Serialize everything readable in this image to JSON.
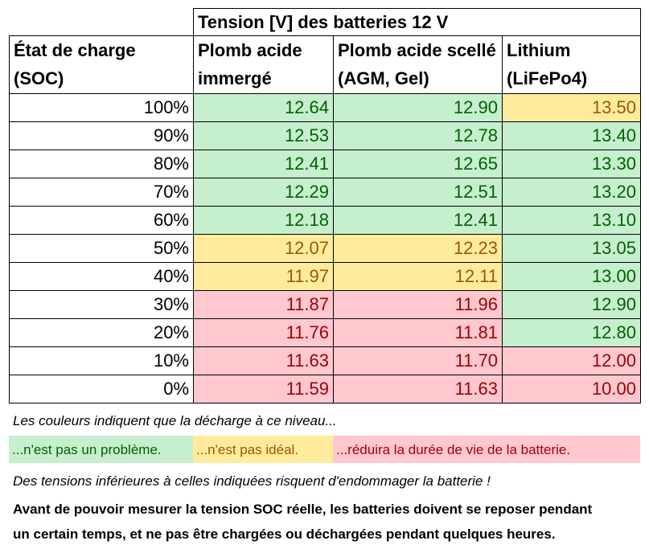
{
  "table": {
    "title": "Tension [V] des batteries 12 V",
    "headers": {
      "soc_line1": "État de charge",
      "soc_line2": "(SOC)",
      "lead_immersed_line1": "Plomb acide",
      "lead_immersed_line2": "immergé",
      "lead_sealed_line1": "Plomb acide scellé",
      "lead_sealed_line2": "(AGM, Gel)",
      "lithium_line1": "Lithium",
      "lithium_line2": "(LiFePo4)"
    },
    "rows": [
      {
        "soc": "100%",
        "lead": "12.64",
        "lead_status": "good",
        "sealed": "12.90",
        "sealed_status": "good",
        "lithium": "13.50",
        "lithium_status": "warn"
      },
      {
        "soc": "90%",
        "lead": "12.53",
        "lead_status": "good",
        "sealed": "12.78",
        "sealed_status": "good",
        "lithium": "13.40",
        "lithium_status": "good"
      },
      {
        "soc": "80%",
        "lead": "12.41",
        "lead_status": "good",
        "sealed": "12.65",
        "sealed_status": "good",
        "lithium": "13.30",
        "lithium_status": "good"
      },
      {
        "soc": "70%",
        "lead": "12.29",
        "lead_status": "good",
        "sealed": "12.51",
        "sealed_status": "good",
        "lithium": "13.20",
        "lithium_status": "good"
      },
      {
        "soc": "60%",
        "lead": "12.18",
        "lead_status": "good",
        "sealed": "12.41",
        "sealed_status": "good",
        "lithium": "13.10",
        "lithium_status": "good"
      },
      {
        "soc": "50%",
        "lead": "12.07",
        "lead_status": "warn",
        "sealed": "12.23",
        "sealed_status": "warn",
        "lithium": "13.05",
        "lithium_status": "good"
      },
      {
        "soc": "40%",
        "lead": "11.97",
        "lead_status": "warn",
        "sealed": "12.11",
        "sealed_status": "warn",
        "lithium": "13.00",
        "lithium_status": "good"
      },
      {
        "soc": "30%",
        "lead": "11.87",
        "lead_status": "bad",
        "sealed": "11.96",
        "sealed_status": "bad",
        "lithium": "12.90",
        "lithium_status": "good"
      },
      {
        "soc": "20%",
        "lead": "11.76",
        "lead_status": "bad",
        "sealed": "11.81",
        "sealed_status": "bad",
        "lithium": "12.80",
        "lithium_status": "good"
      },
      {
        "soc": "10%",
        "lead": "11.63",
        "lead_status": "bad",
        "sealed": "11.70",
        "sealed_status": "bad",
        "lithium": "12.00",
        "lithium_status": "bad"
      },
      {
        "soc": "0%",
        "lead": "11.59",
        "lead_status": "bad",
        "sealed": "11.63",
        "sealed_status": "bad",
        "lithium": "10.00",
        "lithium_status": "bad"
      }
    ]
  },
  "notes": {
    "colors_intro": "Les couleurs indiquent que la décharge à ce niveau...",
    "legend_good": "...n'est pas un problème.",
    "legend_warn": "...n'est pas idéal.",
    "legend_bad": "...réduira la durée de vie de la batterie.",
    "warning": "Des tensions inférieures à celles indiquées risquent d'endommager la batterie !",
    "rest_line1": "Avant de pouvoir mesurer la tension SOC réelle, les batteries doivent se reposer pendant",
    "rest_line2": "un certain temps, et ne pas être chargées ou déchargées pendant quelques heures."
  },
  "colors": {
    "good_bg": "#c6efce",
    "good_fg": "#006100",
    "warn_bg": "#ffeb9c",
    "warn_fg": "#9c5700",
    "bad_bg": "#ffc7ce",
    "bad_fg": "#9c0006"
  }
}
